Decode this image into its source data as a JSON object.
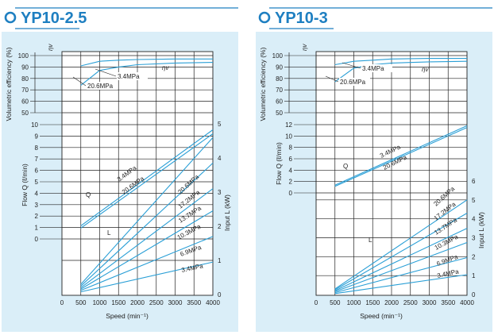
{
  "charts": [
    {
      "title": "YP10-2.5",
      "x_label": "Speed (min⁻¹)",
      "x_ticks": [
        "0",
        "500",
        "1000",
        "1500",
        "2000",
        "2500",
        "3000",
        "3500",
        "4000"
      ],
      "eff_label": "Volumetric efficiency (%)",
      "eff_symbol": "ηv",
      "eff_ticks": [
        "50",
        "60",
        "70",
        "80",
        "90",
        "100"
      ],
      "flow_label": "Flow Q (ℓ/min)",
      "flow_ticks": [
        "0",
        "1",
        "2",
        "3",
        "4",
        "5",
        "6",
        "7",
        "8",
        "9",
        "10"
      ],
      "power_label": "Input L (kW)",
      "power_ticks": [
        "0",
        "1",
        "2",
        "3",
        "4",
        "5"
      ],
      "q_label": "Q",
      "l_label": "L",
      "eff_annotations": [
        "3.4MPa",
        "20.6MPa"
      ],
      "flow_annotations": [
        "3.4MPa",
        "20.6MPa"
      ],
      "power_annotations": [
        "20.6MPa",
        "17.2MPa",
        "13.7MPa",
        "10.3MPa",
        "6.9MPa",
        "3.4MPa"
      ]
    },
    {
      "title": "YP10-3",
      "x_label": "Speed (min⁻¹)",
      "x_ticks": [
        "0",
        "500",
        "1000",
        "1500",
        "2000",
        "2500",
        "3000",
        "3500",
        "4000"
      ],
      "eff_label": "Volumetric efficiency (%)",
      "eff_symbol": "ηv",
      "eff_ticks": [
        "50",
        "60",
        "70",
        "80",
        "90",
        "100"
      ],
      "flow_label": "Flow Q (ℓ/min)",
      "flow_ticks": [
        "0",
        "2",
        "4",
        "6",
        "8",
        "10",
        "12"
      ],
      "power_label": "Input L (kW)",
      "power_ticks": [
        "0",
        "1",
        "2",
        "3",
        "4",
        "5",
        "6"
      ],
      "q_label": "Q",
      "l_label": "L",
      "eff_annotations": [
        "3.4MPa",
        "20.6MPa"
      ],
      "flow_annotations": [
        "3.4MPa",
        "20.6MPa"
      ],
      "power_annotations": [
        "20.6MPa",
        "17.2MPa",
        "13.7MPa",
        "10.3MPa",
        "6.9MPa",
        "3.4MPa"
      ]
    }
  ],
  "chart_data": [
    {
      "type": "line",
      "title": "YP10-2.5",
      "xlabel": "Speed (min⁻¹)",
      "xlim": [
        0,
        4000
      ],
      "panels": [
        {
          "name": "ηv",
          "ylabel": "Volumetric efficiency (%)",
          "ylim": [
            50,
            100
          ],
          "series": [
            {
              "name": "3.4MPa",
              "x": [
                500,
                1000,
                1500,
                2000,
                3000,
                4000
              ],
              "y": [
                91,
                95,
                96,
                96.5,
                97,
                97
              ]
            },
            {
              "name": "20.6MPa",
              "x": [
                500,
                1000,
                1500,
                2000,
                3000,
                4000
              ],
              "y": [
                74,
                87,
                90,
                92,
                93.5,
                94
              ]
            }
          ]
        },
        {
          "name": "Q",
          "ylabel": "Flow Q (ℓ/min)",
          "ylim": [
            0,
            10
          ],
          "series": [
            {
              "name": "3.4MPa",
              "x": [
                500,
                4000
              ],
              "y": [
                1.15,
                9.55
              ]
            },
            {
              "name": "20.6MPa",
              "x": [
                500,
                4000
              ],
              "y": [
                0.95,
                9.2
              ]
            }
          ]
        },
        {
          "name": "L",
          "ylabel": "Input L (kW)",
          "ylim": [
            0,
            5
          ],
          "series": [
            {
              "name": "20.6MPa",
              "x": [
                500,
                4000
              ],
              "y": [
                0.3,
                4.6
              ]
            },
            {
              "name": "17.2MPa",
              "x": [
                500,
                4000
              ],
              "y": [
                0.25,
                3.85
              ]
            },
            {
              "name": "13.7MPa",
              "x": [
                500,
                4000
              ],
              "y": [
                0.2,
                3.1
              ]
            },
            {
              "name": "10.3MPa",
              "x": [
                500,
                4000
              ],
              "y": [
                0.16,
                2.45
              ]
            },
            {
              "name": "6.9MPa",
              "x": [
                500,
                4000
              ],
              "y": [
                0.12,
                1.7
              ]
            },
            {
              "name": "3.4MPa",
              "x": [
                500,
                4000
              ],
              "y": [
                0.08,
                0.95
              ]
            }
          ]
        }
      ]
    },
    {
      "type": "line",
      "title": "YP10-3",
      "xlabel": "Speed (min⁻¹)",
      "xlim": [
        0,
        4000
      ],
      "panels": [
        {
          "name": "ηv",
          "ylabel": "Volumetric efficiency (%)",
          "ylim": [
            50,
            100
          ],
          "series": [
            {
              "name": "3.4MPa",
              "x": [
                500,
                1000,
                1500,
                2000,
                3000,
                4000
              ],
              "y": [
                92,
                95,
                96,
                97,
                97.5,
                97.5
              ]
            },
            {
              "name": "20.6MPa",
              "x": [
                500,
                1000,
                1500,
                2000,
                3000,
                4000
              ],
              "y": [
                77,
                89,
                92,
                93.5,
                94.5,
                95
              ]
            }
          ]
        },
        {
          "name": "Q",
          "ylabel": "Flow Q (ℓ/min)",
          "ylim": [
            0,
            12
          ],
          "series": [
            {
              "name": "3.4MPa",
              "x": [
                500,
                4000
              ],
              "y": [
                1.35,
                11.8
              ]
            },
            {
              "name": "20.6MPa",
              "x": [
                500,
                4000
              ],
              "y": [
                1.15,
                11.5
              ]
            }
          ]
        },
        {
          "name": "L",
          "ylabel": "Input L (kW)",
          "ylim": [
            0,
            6
          ],
          "series": [
            {
              "name": "20.6MPa",
              "x": [
                500,
                4000
              ],
              "y": [
                0.3,
                5.0
              ]
            },
            {
              "name": "17.2MPa",
              "x": [
                500,
                4000
              ],
              "y": [
                0.25,
                4.3
              ]
            },
            {
              "name": "13.7MPa",
              "x": [
                500,
                4000
              ],
              "y": [
                0.2,
                3.5
              ]
            },
            {
              "name": "10.3MPa",
              "x": [
                500,
                4000
              ],
              "y": [
                0.15,
                2.75
              ]
            },
            {
              "name": "6.9MPa",
              "x": [
                500,
                4000
              ],
              "y": [
                0.1,
                1.95
              ]
            },
            {
              "name": "3.4MPa",
              "x": [
                500,
                4000
              ],
              "y": [
                0.05,
                1.05
              ]
            }
          ]
        }
      ]
    }
  ],
  "colors": {
    "accent": "#1e7fc1",
    "curve": "#2a9fd6",
    "panel_bg": "#daeef8",
    "grid": "#222222"
  }
}
